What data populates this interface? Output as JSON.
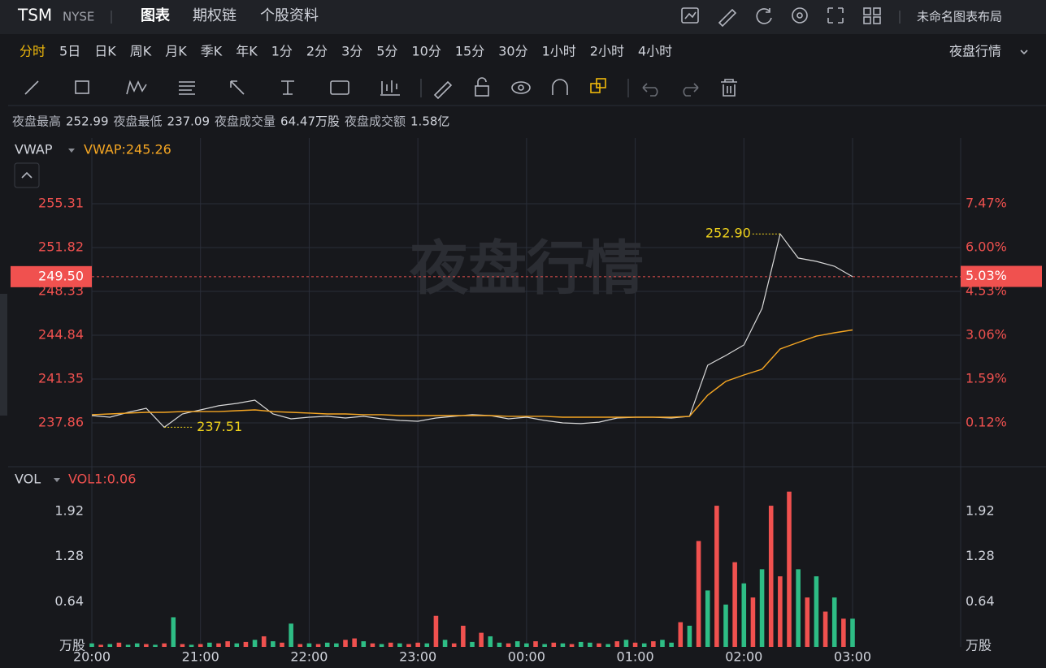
{
  "header": {
    "symbol": "TSM",
    "exchange": "NYSE",
    "tabs": [
      "图表",
      "期权链",
      "个股资料"
    ],
    "active_tab": 0,
    "layout_name": "未命名图表布局"
  },
  "timeframes": {
    "items": [
      "分时",
      "5日",
      "日K",
      "周K",
      "月K",
      "季K",
      "年K",
      "1分",
      "2分",
      "3分",
      "5分",
      "10分",
      "15分",
      "30分",
      "1小时",
      "2小时",
      "4小时"
    ],
    "active": 0
  },
  "session_menu": "夜盘行情",
  "stats": [
    {
      "label": "夜盘最高",
      "value": "252.99"
    },
    {
      "label": "夜盘最低",
      "value": "237.09"
    },
    {
      "label": "夜盘成交量",
      "value": "64.47万股"
    },
    {
      "label": "夜盘成交额",
      "value": "1.58亿"
    }
  ],
  "watermark": "夜盘行情",
  "chart_data": [
    {
      "type": "line",
      "color": "#d9d9d9",
      "x": [
        "20:00",
        "20:10",
        "20:20",
        "20:30",
        "20:40",
        "20:50",
        "21:00",
        "21:10",
        "21:20",
        "21:30",
        "21:40",
        "21:50",
        "22:00",
        "22:10",
        "22:20",
        "22:30",
        "22:40",
        "22:50",
        "23:00",
        "23:10",
        "23:20",
        "23:30",
        "23:40",
        "23:50",
        "00:00",
        "00:10",
        "00:20",
        "00:30",
        "00:40",
        "00:50",
        "01:00",
        "01:10",
        "01:20",
        "01:30",
        "01:40",
        "01:50",
        "02:00",
        "02:10",
        "02:20",
        "02:30",
        "02:40",
        "02:50",
        "03:00"
      ],
      "values": [
        238.44,
        238.31,
        238.7,
        239.02,
        237.51,
        238.57,
        238.89,
        239.22,
        239.41,
        239.67,
        238.57,
        238.18,
        238.31,
        238.38,
        238.25,
        238.38,
        238.18,
        238.05,
        237.99,
        238.25,
        238.38,
        238.51,
        238.44,
        238.18,
        238.31,
        238.05,
        237.86,
        237.8,
        237.92,
        238.25,
        238.31,
        238.31,
        238.25,
        238.38,
        242.45,
        243.22,
        244.06,
        246.97,
        252.9,
        250.98,
        250.72,
        250.33,
        249.5
      ],
      "overlays": [
        {
          "name": "VWAP",
          "color": "#f5a623",
          "value_label": "VWAP:245.26",
          "values": [
            238.51,
            238.57,
            238.64,
            238.7,
            238.7,
            238.76,
            238.76,
            238.76,
            238.83,
            238.89,
            238.76,
            238.7,
            238.64,
            238.57,
            238.57,
            238.51,
            238.51,
            238.44,
            238.44,
            238.44,
            238.44,
            238.44,
            238.44,
            238.38,
            238.38,
            238.38,
            238.31,
            238.31,
            238.31,
            238.31,
            238.31,
            238.31,
            238.31,
            238.38,
            240.06,
            241.16,
            241.67,
            242.13,
            243.74,
            244.26,
            244.77,
            245.03,
            245.26
          ]
        }
      ],
      "ylim": [
        234.37,
        260.54
      ],
      "yticks": [
        237.86,
        241.35,
        244.84,
        248.33,
        251.82,
        255.31
      ],
      "y2lim": [
        -1.35,
        9.67
      ],
      "y2ticks": [
        {
          "value": 0.12,
          "label": "0.12%"
        },
        {
          "value": 1.59,
          "label": "1.59%"
        },
        {
          "value": 3.06,
          "label": "3.06%"
        },
        {
          "value": 4.53,
          "label": "4.53%"
        },
        {
          "value": 6.0,
          "label": "6.00%"
        },
        {
          "value": 7.47,
          "label": "7.47%"
        }
      ],
      "last_value": {
        "value": 249.5,
        "label": "249.50"
      },
      "last_change": {
        "value": 5.03,
        "label": "5.03%"
      },
      "last_color": "#f0514f",
      "annotations": [
        {
          "x": "02:20",
          "value": 252.9,
          "label": "252.90",
          "side": "left"
        },
        {
          "x": "20:40",
          "value": 237.51,
          "label": "237.51",
          "side": "right"
        }
      ],
      "grid": true
    },
    {
      "type": "bar",
      "legend": "VOL",
      "value_label": "VOL1:0.06",
      "unit": "万股",
      "x": [
        "20:00",
        "20:05",
        "20:10",
        "20:15",
        "20:20",
        "20:25",
        "20:30",
        "20:35",
        "20:40",
        "20:45",
        "20:50",
        "20:55",
        "21:00",
        "21:05",
        "21:10",
        "21:15",
        "21:20",
        "21:25",
        "21:30",
        "21:35",
        "21:40",
        "21:45",
        "21:50",
        "21:55",
        "22:00",
        "22:05",
        "22:10",
        "22:15",
        "22:20",
        "22:25",
        "22:30",
        "22:35",
        "22:40",
        "22:45",
        "22:50",
        "22:55",
        "23:00",
        "23:05",
        "23:10",
        "23:15",
        "23:20",
        "23:25",
        "23:30",
        "23:35",
        "23:40",
        "23:45",
        "23:50",
        "23:55",
        "00:00",
        "00:05",
        "00:10",
        "00:15",
        "00:20",
        "00:25",
        "00:30",
        "00:35",
        "00:40",
        "00:45",
        "00:50",
        "00:55",
        "01:00",
        "01:05",
        "01:10",
        "01:15",
        "01:20",
        "01:25",
        "01:30",
        "01:35",
        "01:40",
        "01:45",
        "01:50",
        "01:55",
        "02:00",
        "02:05",
        "02:10",
        "02:15",
        "02:20",
        "02:25",
        "02:30",
        "02:35",
        "02:40",
        "02:45",
        "02:50",
        "02:55",
        "03:00"
      ],
      "values": [
        0.05,
        0.03,
        0.04,
        0.06,
        0.03,
        0.05,
        0.04,
        0.03,
        0.05,
        0.42,
        0.04,
        0.03,
        0.04,
        0.06,
        0.05,
        0.08,
        0.05,
        0.07,
        0.1,
        0.15,
        0.08,
        0.06,
        0.33,
        0.04,
        0.05,
        0.04,
        0.06,
        0.05,
        0.1,
        0.12,
        0.08,
        0.05,
        0.04,
        0.06,
        0.05,
        0.04,
        0.06,
        0.05,
        0.44,
        0.1,
        0.05,
        0.3,
        0.07,
        0.2,
        0.15,
        0.06,
        0.05,
        0.08,
        0.05,
        0.08,
        0.04,
        0.06,
        0.05,
        0.04,
        0.07,
        0.06,
        0.05,
        0.04,
        0.08,
        0.1,
        0.06,
        0.05,
        0.08,
        0.1,
        0.06,
        0.35,
        0.3,
        1.5,
        0.8,
        2.0,
        0.6,
        1.2,
        0.9,
        0.7,
        1.1,
        2.0,
        1.0,
        2.2,
        1.1,
        0.7,
        1.0,
        0.5,
        0.7,
        0.4,
        0.4
      ],
      "colors": [
        "#2ebd85",
        "#f0514f",
        "#2ebd85",
        "#f0514f",
        "#2ebd85",
        "#2ebd85",
        "#f0514f",
        "#2ebd85",
        "#f0514f",
        "#2ebd85",
        "#f0514f",
        "#2ebd85",
        "#f0514f",
        "#2ebd85",
        "#f0514f",
        "#f0514f",
        "#2ebd85",
        "#f0514f",
        "#2ebd85",
        "#f0514f",
        "#2ebd85",
        "#f0514f",
        "#2ebd85",
        "#f0514f",
        "#2ebd85",
        "#f0514f",
        "#2ebd85",
        "#2ebd85",
        "#f0514f",
        "#f0514f",
        "#2ebd85",
        "#f0514f",
        "#2ebd85",
        "#f0514f",
        "#2ebd85",
        "#f0514f",
        "#f0514f",
        "#2ebd85",
        "#f0514f",
        "#2ebd85",
        "#f0514f",
        "#f0514f",
        "#2ebd85",
        "#f0514f",
        "#2ebd85",
        "#2ebd85",
        "#f0514f",
        "#2ebd85",
        "#2ebd85",
        "#f0514f",
        "#2ebd85",
        "#f0514f",
        "#2ebd85",
        "#f0514f",
        "#2ebd85",
        "#2ebd85",
        "#f0514f",
        "#2ebd85",
        "#f0514f",
        "#2ebd85",
        "#f0514f",
        "#2ebd85",
        "#f0514f",
        "#2ebd85",
        "#2ebd85",
        "#f0514f",
        "#2ebd85",
        "#f0514f",
        "#2ebd85",
        "#f0514f",
        "#2ebd85",
        "#f0514f",
        "#2ebd85",
        "#f0514f",
        "#2ebd85",
        "#f0514f",
        "#f0514f",
        "#f0514f",
        "#2ebd85",
        "#f0514f",
        "#2ebd85",
        "#f0514f",
        "#2ebd85",
        "#f0514f",
        "#2ebd85"
      ],
      "ylim": [
        0,
        2.53
      ],
      "yticks": [
        0.64,
        1.28,
        1.92
      ],
      "grid": true
    }
  ]
}
